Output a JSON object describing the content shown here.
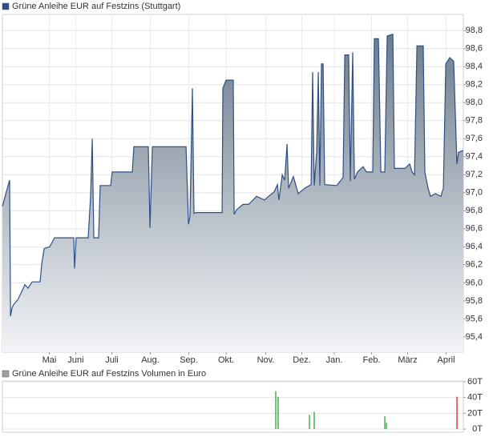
{
  "chart_data": [
    {
      "type": "area",
      "x": [
        0,
        4.7,
        6.0,
        6.7,
        8.0,
        9.3,
        12.7,
        16.0,
        18.7,
        21.3,
        24.7,
        31.3,
        32.7,
        34.7,
        39.3,
        43.3,
        59.3,
        60.0,
        61.3,
        71.3,
        73.3,
        74.7,
        76.0,
        80.0,
        81.3,
        90.0,
        91.3,
        108.0,
        109.3,
        121.3,
        122.7,
        124.7,
        152.7,
        154.7,
        156.0,
        158.0,
        159.3,
        161.3,
        182.7,
        183.3,
        186.0,
        192.0,
        192.7,
        194.7,
        200.0,
        204.7,
        211.3,
        218.0,
        221.3,
        226.0,
        228.7,
        230.0,
        232.7,
        234.7,
        236.7,
        238.0,
        242.0,
        246.0,
        251.3,
        256.7,
        258.0,
        259.3,
        261.3,
        262.7,
        264.0,
        265.3,
        266.7,
        268.0,
        278.0,
        283.3,
        284.7,
        288.0,
        289.3,
        291.3,
        292.7,
        295.3,
        300.0,
        302.7,
        308.0,
        309.3,
        312.7,
        314.7,
        318.0,
        320.0,
        324.7,
        326.0,
        334.7,
        338.7,
        340.7,
        342.7,
        344.7,
        350.0,
        351.3,
        354.0,
        356.0,
        360.0,
        364.7,
        366.7,
        368.7,
        372.0,
        375.3,
        378.0,
        379.3,
        383.3
      ],
      "series": [
        {
          "name": "Grüne Anleihe EUR auf Festzins (Stuttgart)",
          "color": "#2f4f86",
          "values": [
            96.85,
            97.08,
            97.14,
            95.63,
            95.72,
            95.76,
            95.81,
            95.9,
            95.98,
            95.94,
            96.01,
            96.01,
            96.21,
            96.38,
            96.4,
            96.5,
            96.5,
            96.16,
            96.5,
            96.5,
            96.96,
            97.6,
            96.5,
            96.5,
            97.08,
            97.08,
            97.23,
            97.23,
            97.51,
            97.51,
            96.61,
            97.51,
            97.51,
            96.65,
            96.74,
            98.16,
            96.77,
            96.78,
            96.78,
            98.16,
            98.25,
            98.25,
            96.76,
            96.81,
            96.87,
            96.87,
            96.96,
            96.92,
            96.96,
            97.01,
            97.09,
            96.92,
            97.2,
            97.14,
            97.54,
            97.05,
            97.18,
            96.99,
            97.05,
            97.09,
            98.34,
            97.08,
            97.45,
            98.34,
            97.08,
            98.43,
            98.43,
            97.09,
            97.08,
            97.17,
            98.53,
            98.53,
            97.13,
            98.56,
            97.15,
            97.23,
            97.29,
            97.23,
            97.23,
            98.71,
            98.71,
            97.23,
            97.23,
            98.74,
            98.76,
            97.27,
            97.27,
            97.32,
            97.23,
            97.2,
            98.63,
            98.63,
            97.23,
            97.05,
            96.96,
            96.99,
            96.96,
            97.05,
            98.43,
            98.5,
            98.46,
            97.32,
            97.45,
            97.47
          ]
        }
      ],
      "xlim": [
        0,
        383.3
      ],
      "xticks": [
        {
          "value": 39,
          "label": "Mai"
        },
        {
          "value": 61,
          "label": "Juni"
        },
        {
          "value": 91,
          "label": "Juli"
        },
        {
          "value": 123,
          "label": "Aug."
        },
        {
          "value": 155,
          "label": "Sep."
        },
        {
          "value": 186,
          "label": "Okt."
        },
        {
          "value": 219,
          "label": "Nov."
        },
        {
          "value": 249,
          "label": "Dez."
        },
        {
          "value": 276,
          "label": "Jan."
        },
        {
          "value": 307,
          "label": "Feb."
        },
        {
          "value": 337,
          "label": "März"
        },
        {
          "value": 369,
          "label": "April"
        }
      ],
      "ylim": [
        95.23,
        98.98
      ],
      "yticks": [
        {
          "value": 95.4,
          "label": "95,4"
        },
        {
          "value": 95.6,
          "label": "95,6"
        },
        {
          "value": 95.8,
          "label": "95,8"
        },
        {
          "value": 96.0,
          "label": "96,0"
        },
        {
          "value": 96.2,
          "label": "96,2"
        },
        {
          "value": 96.4,
          "label": "96,4"
        },
        {
          "value": 96.6,
          "label": "96,6"
        },
        {
          "value": 96.8,
          "label": "96,8"
        },
        {
          "value": 97.0,
          "label": "97,0"
        },
        {
          "value": 97.2,
          "label": "97,2"
        },
        {
          "value": 97.4,
          "label": "97,4"
        },
        {
          "value": 97.6,
          "label": "97,6"
        },
        {
          "value": 97.8,
          "label": "97,8"
        },
        {
          "value": 98.0,
          "label": "98,0"
        },
        {
          "value": 98.2,
          "label": "98,2"
        },
        {
          "value": 98.4,
          "label": "98,4"
        },
        {
          "value": 98.6,
          "label": "98,6"
        },
        {
          "value": 98.8,
          "label": "98,8"
        }
      ],
      "grid": true
    },
    {
      "type": "bar",
      "x": [
        227.3,
        229.3,
        255.3,
        259.3,
        318.0,
        319.3,
        378.0
      ],
      "series": [
        {
          "name": "Grüne Anleihe EUR auf Festzins Volumen in Euro",
          "color": "#a0a0a0",
          "values": [
            48000,
            41000,
            18000,
            22000,
            16000,
            8000,
            41000
          ]
        }
      ],
      "bar_colors": [
        "#4caf50",
        "#4caf50",
        "#4caf50",
        "#4caf50",
        "#4caf50",
        "#4caf50",
        "#e53935"
      ],
      "xlim": [
        0,
        383.3
      ],
      "ylim": [
        -4000,
        61000
      ],
      "yticks": [
        {
          "value": 0,
          "label": "0T"
        },
        {
          "value": 20000,
          "label": "20T"
        },
        {
          "value": 40000,
          "label": "40T"
        },
        {
          "value": 60000,
          "label": "60T"
        }
      ],
      "grid": true
    }
  ]
}
